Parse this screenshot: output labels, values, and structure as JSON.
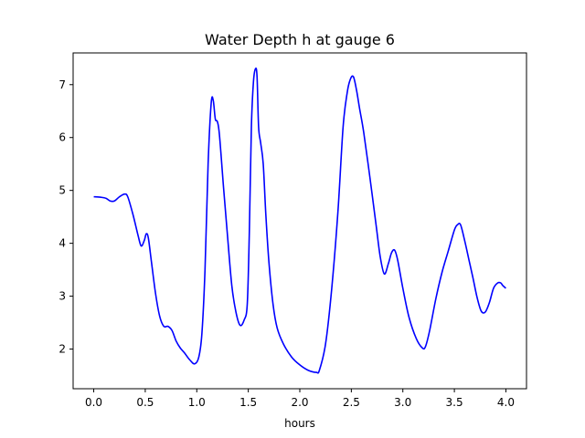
{
  "chart_data": {
    "type": "line",
    "title": "Water Depth h at gauge 6",
    "xlabel": "hours",
    "ylabel": "",
    "xlim": [
      -0.2,
      4.2
    ],
    "ylim": [
      1.25,
      7.6
    ],
    "xticks": [
      0.0,
      0.5,
      1.0,
      1.5,
      2.0,
      2.5,
      3.0,
      3.5,
      4.0
    ],
    "xtick_labels": [
      "0.0",
      "0.5",
      "1.0",
      "1.5",
      "2.0",
      "2.5",
      "3.0",
      "3.5",
      "4.0"
    ],
    "yticks": [
      2,
      3,
      4,
      5,
      6,
      7
    ],
    "ytick_labels": [
      "2",
      "3",
      "4",
      "5",
      "6",
      "7"
    ],
    "grid": false,
    "series": [
      {
        "color": "#0000ff",
        "x": [
          0.0,
          0.07,
          0.12,
          0.16,
          0.2,
          0.25,
          0.3,
          0.33,
          0.38,
          0.43,
          0.46,
          0.49,
          0.51,
          0.53,
          0.56,
          0.6,
          0.64,
          0.68,
          0.72,
          0.76,
          0.8,
          0.84,
          0.88,
          0.93,
          0.98,
          1.02,
          1.05,
          1.08,
          1.11,
          1.14,
          1.16,
          1.18,
          1.2,
          1.22,
          1.26,
          1.3,
          1.34,
          1.38,
          1.42,
          1.46,
          1.49,
          1.51,
          1.53,
          1.55,
          1.57,
          1.585,
          1.6,
          1.62,
          1.645,
          1.67,
          1.7,
          1.74,
          1.78,
          1.84,
          1.92,
          2.0,
          2.08,
          2.16,
          2.19,
          2.25,
          2.31,
          2.37,
          2.42,
          2.46,
          2.49,
          2.52,
          2.55,
          2.58,
          2.62,
          2.68,
          2.74,
          2.78,
          2.82,
          2.86,
          2.89,
          2.92,
          2.95,
          3.0,
          3.06,
          3.13,
          3.19,
          3.22,
          3.26,
          3.32,
          3.38,
          3.44,
          3.5,
          3.53,
          3.56,
          3.6,
          3.64,
          3.68,
          3.72,
          3.76,
          3.8,
          3.84,
          3.88,
          3.92,
          3.95,
          3.97,
          4.0
        ],
        "y": [
          4.88,
          4.87,
          4.85,
          4.8,
          4.8,
          4.88,
          4.93,
          4.88,
          4.55,
          4.15,
          3.95,
          4.05,
          4.18,
          4.1,
          3.65,
          3.05,
          2.62,
          2.43,
          2.43,
          2.35,
          2.15,
          2.02,
          1.93,
          1.8,
          1.72,
          1.85,
          2.3,
          3.5,
          5.5,
          6.65,
          6.7,
          6.35,
          6.3,
          6.05,
          5.05,
          4.1,
          3.2,
          2.7,
          2.45,
          2.55,
          2.85,
          4.2,
          6.2,
          7.05,
          7.3,
          7.15,
          6.2,
          5.9,
          5.5,
          4.55,
          3.65,
          2.85,
          2.4,
          2.1,
          1.85,
          1.7,
          1.6,
          1.56,
          1.6,
          2.1,
          3.15,
          4.6,
          6.2,
          6.85,
          7.1,
          7.15,
          6.9,
          6.55,
          6.1,
          5.25,
          4.35,
          3.75,
          3.42,
          3.62,
          3.82,
          3.87,
          3.68,
          3.15,
          2.6,
          2.2,
          2.02,
          2.05,
          2.35,
          2.95,
          3.45,
          3.85,
          4.25,
          4.35,
          4.35,
          4.05,
          3.7,
          3.35,
          2.98,
          2.72,
          2.7,
          2.88,
          3.15,
          3.25,
          3.25,
          3.2,
          3.15
        ]
      }
    ]
  }
}
